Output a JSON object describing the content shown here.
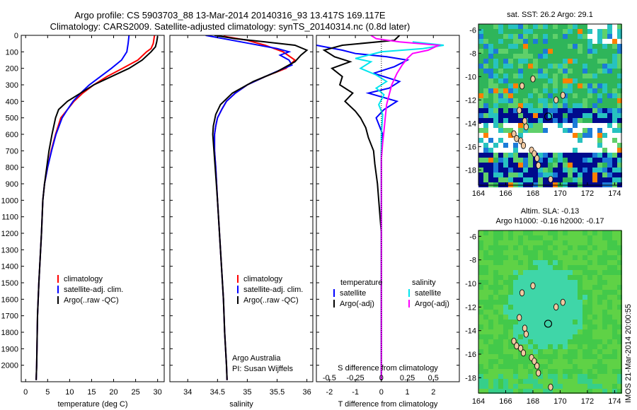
{
  "figure": {
    "title_line1": "Argo profile: CS 5903703_88 13-Mar-2014 20140316_93 13.417S 169.117E",
    "title_line2": "Climatology: CARS2009. Satellite-adjusted climatology: synTS_20140314.nc (0.8d later)",
    "side_label": "IMOS 21-Mar-2014 20:00:55"
  },
  "colors": {
    "climatology": "#ff0000",
    "satellite": "#0000ff",
    "argo": "#000000",
    "sat_salinity": "#00e5ee",
    "argo_salinity": "#ff00ff"
  },
  "chart_data": [
    {
      "type": "line",
      "id": "temperature",
      "xlabel": "temperature (deg C)",
      "ylabel": "",
      "xlim": [
        -1,
        31.5
      ],
      "ylim": [
        2100,
        0
      ],
      "xticks": [
        0,
        5,
        10,
        15,
        20,
        25,
        30
      ],
      "yticks": [
        0,
        100,
        200,
        300,
        400,
        500,
        600,
        700,
        800,
        900,
        1000,
        1100,
        1200,
        1300,
        1400,
        1500,
        1600,
        1700,
        1800,
        1900,
        2000
      ],
      "legend": [
        "climatology",
        "satellite-adj. clim.",
        "Argo(..raw -QC)"
      ],
      "series": [
        {
          "name": "climatology",
          "color_key": "climatology",
          "points": [
            [
              29.3,
              0
            ],
            [
              29.0,
              50
            ],
            [
              28.5,
              80
            ],
            [
              27.5,
              100
            ],
            [
              25.5,
              150
            ],
            [
              22.0,
              200
            ],
            [
              18.5,
              250
            ],
            [
              15.5,
              300
            ],
            [
              13.0,
              350
            ],
            [
              11.0,
              400
            ],
            [
              9.5,
              450
            ],
            [
              8.0,
              500
            ],
            [
              6.8,
              600
            ],
            [
              5.8,
              700
            ],
            [
              5.0,
              800
            ],
            [
              4.3,
              900
            ],
            [
              3.9,
              1000
            ],
            [
              3.6,
              1200
            ],
            [
              3.0,
              1500
            ],
            [
              2.7,
              1700
            ],
            [
              2.5,
              2000
            ],
            [
              2.4,
              2090
            ]
          ]
        },
        {
          "name": "satellite-adj. clim.",
          "color_key": "satellite",
          "points": [
            [
              23.5,
              0
            ],
            [
              23.3,
              50
            ],
            [
              23.0,
              100
            ],
            [
              21.8,
              150
            ],
            [
              19.5,
              200
            ],
            [
              17.0,
              250
            ],
            [
              14.5,
              300
            ],
            [
              12.5,
              350
            ],
            [
              10.8,
              400
            ],
            [
              9.5,
              450
            ],
            [
              8.3,
              500
            ],
            [
              6.9,
              600
            ],
            [
              5.9,
              700
            ],
            [
              5.0,
              800
            ],
            [
              4.3,
              900
            ],
            [
              3.9,
              1000
            ],
            [
              3.6,
              1200
            ],
            [
              3.0,
              1500
            ],
            [
              2.7,
              1700
            ],
            [
              2.5,
              2000
            ],
            [
              2.4,
              2090
            ]
          ]
        },
        {
          "name": "Argo(..raw -QC)",
          "color_key": "argo",
          "points": [
            [
              30.0,
              5
            ],
            [
              29.8,
              40
            ],
            [
              29.5,
              70
            ],
            [
              28.5,
              100
            ],
            [
              26.5,
              150
            ],
            [
              23.5,
              200
            ],
            [
              19.5,
              250
            ],
            [
              15.5,
              300
            ],
            [
              12.5,
              350
            ],
            [
              9.5,
              400
            ],
            [
              7.5,
              450
            ],
            [
              6.8,
              500
            ],
            [
              6.0,
              600
            ],
            [
              5.3,
              700
            ],
            [
              4.8,
              800
            ],
            [
              4.3,
              900
            ],
            [
              3.9,
              1000
            ],
            [
              3.6,
              1200
            ],
            [
              3.0,
              1500
            ],
            [
              2.7,
              1700
            ],
            [
              2.5,
              2000
            ],
            [
              2.4,
              2090
            ]
          ]
        }
      ]
    },
    {
      "type": "line",
      "id": "salinity",
      "xlabel": "salinity",
      "ylabel": "",
      "xlim": [
        33.7,
        36.1
      ],
      "ylim": [
        2100,
        0
      ],
      "xticks": [
        34,
        34.5,
        35,
        35.5,
        36
      ],
      "legend": [
        "climatology",
        "satellite-adj. clim.",
        "Argo(..raw -QC)"
      ],
      "annotation_lines": [
        "Argo Australia",
        "PI: Susan Wijffels"
      ],
      "series": [
        {
          "name": "climatology",
          "color_key": "climatology",
          "points": [
            [
              34.6,
              5
            ],
            [
              35.0,
              30
            ],
            [
              35.3,
              60
            ],
            [
              35.6,
              100
            ],
            [
              35.8,
              150
            ],
            [
              35.65,
              200
            ],
            [
              35.3,
              250
            ],
            [
              35.0,
              300
            ],
            [
              34.8,
              350
            ],
            [
              34.65,
              400
            ],
            [
              34.57,
              450
            ],
            [
              34.5,
              500
            ],
            [
              34.47,
              550
            ],
            [
              34.45,
              600
            ],
            [
              34.45,
              700
            ],
            [
              34.47,
              800
            ],
            [
              34.5,
              1000
            ],
            [
              34.55,
              1300
            ],
            [
              34.6,
              1600
            ],
            [
              34.62,
              1800
            ],
            [
              34.65,
              2000
            ],
            [
              34.66,
              2090
            ]
          ]
        },
        {
          "name": "satellite-adj. clim.",
          "color_key": "satellite",
          "points": [
            [
              34.3,
              0
            ],
            [
              34.6,
              20
            ],
            [
              35.05,
              50
            ],
            [
              35.5,
              80
            ],
            [
              35.7,
              100
            ],
            [
              35.55,
              120
            ],
            [
              35.7,
              150
            ],
            [
              35.75,
              180
            ],
            [
              35.55,
              210
            ],
            [
              35.3,
              250
            ],
            [
              35.0,
              300
            ],
            [
              34.8,
              350
            ],
            [
              34.65,
              400
            ],
            [
              34.57,
              450
            ],
            [
              34.5,
              500
            ],
            [
              34.47,
              550
            ],
            [
              34.45,
              600
            ],
            [
              34.45,
              700
            ],
            [
              34.47,
              800
            ],
            [
              34.5,
              1000
            ],
            [
              34.55,
              1300
            ],
            [
              34.6,
              1600
            ],
            [
              34.62,
              1800
            ],
            [
              34.65,
              2000
            ],
            [
              34.66,
              2090
            ]
          ]
        },
        {
          "name": "Argo(..raw -QC)",
          "color_key": "argo",
          "points": [
            [
              34.45,
              0
            ],
            [
              34.8,
              20
            ],
            [
              35.3,
              40
            ],
            [
              35.8,
              60
            ],
            [
              36.0,
              90
            ],
            [
              35.9,
              120
            ],
            [
              35.8,
              160
            ],
            [
              35.5,
              220
            ],
            [
              35.1,
              280
            ],
            [
              34.75,
              350
            ],
            [
              34.55,
              420
            ],
            [
              34.47,
              480
            ],
            [
              34.43,
              550
            ],
            [
              34.42,
              600
            ],
            [
              34.44,
              700
            ],
            [
              34.46,
              800
            ],
            [
              34.5,
              1000
            ],
            [
              34.55,
              1300
            ],
            [
              34.6,
              1600
            ],
            [
              34.62,
              1800
            ],
            [
              34.65,
              2000
            ],
            [
              34.66,
              2090
            ]
          ]
        }
      ]
    },
    {
      "type": "line",
      "id": "difference",
      "xlabel": "T difference from climatology",
      "x2label": "S difference from climatology",
      "ylabel": "",
      "xlim": [
        -2.5,
        3.0
      ],
      "ylim": [
        2100,
        0
      ],
      "xticks": [
        -2,
        -1,
        0,
        1,
        2
      ],
      "xticks_top": [
        "-0.5",
        "-0.25",
        "0",
        "0.25",
        "0.5"
      ],
      "x2_scale": 4,
      "legend_groups": [
        {
          "heading": "temperature",
          "items": [
            "satellite",
            "Argo(-adj)"
          ]
        },
        {
          "heading": "salinity",
          "items": [
            "satellite",
            "Argo(-adj)"
          ]
        }
      ],
      "series": [
        {
          "name": "satellite",
          "group": "temperature",
          "color_key": "satellite",
          "points": [
            [
              -5.8,
              0
            ],
            [
              -5.0,
              30
            ],
            [
              -2.5,
              60
            ],
            [
              -1.5,
              90
            ],
            [
              -1.0,
              110
            ],
            [
              0.2,
              130
            ],
            [
              1.0,
              150
            ],
            [
              0.5,
              190
            ],
            [
              -0.3,
              230
            ],
            [
              0.7,
              280
            ],
            [
              0.3,
              320
            ],
            [
              -0.5,
              350
            ],
            [
              0.6,
              400
            ],
            [
              0.1,
              450
            ],
            [
              -0.2,
              500
            ],
            [
              0.05,
              600
            ],
            [
              0.0,
              700
            ],
            [
              0.0,
              900
            ],
            [
              0.0,
              1200
            ],
            [
              0.0,
              2090
            ]
          ]
        },
        {
          "name": "Argo(-adj)",
          "group": "temperature",
          "color_key": "argo",
          "points": [
            [
              0.7,
              0
            ],
            [
              0.5,
              30
            ],
            [
              -1.5,
              60
            ],
            [
              -2.2,
              90
            ],
            [
              -1.8,
              130
            ],
            [
              -1.2,
              160
            ],
            [
              -1.9,
              200
            ],
            [
              -1.5,
              250
            ],
            [
              -1.6,
              300
            ],
            [
              -1.1,
              350
            ],
            [
              -1.4,
              400
            ],
            [
              -1.0,
              460
            ],
            [
              -0.8,
              500
            ],
            [
              -0.6,
              560
            ],
            [
              -0.5,
              620
            ],
            [
              -0.3,
              700
            ],
            [
              -0.25,
              780
            ],
            [
              -0.15,
              900
            ],
            [
              -0.1,
              1000
            ],
            [
              0.0,
              1200
            ],
            [
              0.0,
              2090
            ]
          ]
        },
        {
          "name": "satellite",
          "group": "salinity",
          "color_key": "sat_salinity",
          "points": [
            [
              1.2,
              40
            ],
            [
              2.4,
              60
            ],
            [
              1.6,
              80
            ],
            [
              0.0,
              100
            ],
            [
              -0.5,
              120
            ],
            [
              -1.0,
              140
            ],
            [
              -0.4,
              160
            ],
            [
              -0.8,
              200
            ],
            [
              -0.2,
              240
            ],
            [
              0.2,
              280
            ],
            [
              -0.2,
              320
            ],
            [
              0.1,
              360
            ],
            [
              -0.1,
              420
            ],
            [
              0.05,
              480
            ],
            [
              0.0,
              600
            ],
            [
              0.0,
              800
            ],
            [
              0.0,
              2090
            ]
          ]
        },
        {
          "name": "Argo(-adj)",
          "group": "salinity",
          "color_key": "argo_salinity",
          "points": [
            [
              -0.4,
              0
            ],
            [
              -0.2,
              20
            ],
            [
              0.7,
              40
            ],
            [
              2.2,
              60
            ],
            [
              1.8,
              90
            ],
            [
              1.2,
              110
            ],
            [
              1.0,
              140
            ],
            [
              0.8,
              180
            ],
            [
              0.6,
              230
            ],
            [
              0.4,
              300
            ],
            [
              0.3,
              360
            ],
            [
              0.2,
              420
            ],
            [
              0.15,
              500
            ],
            [
              0.1,
              580
            ],
            [
              0.05,
              650
            ],
            [
              0.0,
              750
            ],
            [
              0.0,
              2090
            ]
          ]
        }
      ]
    }
  ],
  "maps": [
    {
      "id": "sst-map",
      "title_lines": [
        "sat. SST: 26.2  Argo: 29.1"
      ],
      "xticks": [
        164,
        166,
        168,
        170,
        172,
        174
      ],
      "yticks": [
        -6,
        -8,
        -10,
        -12,
        -14,
        -16,
        -18
      ],
      "xlim": [
        164,
        174.5
      ],
      "ylim": [
        -19.3,
        -5.5
      ],
      "float_position": [
        169.117,
        -13.417
      ]
    },
    {
      "id": "sla-map",
      "title_lines": [
        "Altim. SLA: -0.13",
        "Argo h1000: -0.16 h2000: -0.17"
      ],
      "xticks": [
        164,
        166,
        168,
        170,
        172,
        174
      ],
      "yticks": [
        -6,
        -8,
        -10,
        -12,
        -14,
        -16,
        -18
      ],
      "xlim": [
        164,
        174.5
      ],
      "ylim": [
        -19.3,
        -5.5
      ],
      "float_position": [
        169.117,
        -13.417
      ]
    }
  ],
  "islands": [
    [
      166.6,
      -14.9
    ],
    [
      166.8,
      -15.3
    ],
    [
      167.1,
      -15.5
    ],
    [
      167.3,
      -15.9
    ],
    [
      167.9,
      -16.3
    ],
    [
      168.1,
      -16.6
    ],
    [
      168.3,
      -17.0
    ],
    [
      168.4,
      -17.6
    ],
    [
      169.3,
      -18.8
    ],
    [
      167.4,
      -13.8
    ],
    [
      167.5,
      -14.3
    ],
    [
      167.0,
      -12.9
    ],
    [
      168.0,
      -10.2
    ],
    [
      167.2,
      -10.8
    ],
    [
      169.7,
      -12.0
    ],
    [
      170.2,
      -11.6
    ]
  ]
}
